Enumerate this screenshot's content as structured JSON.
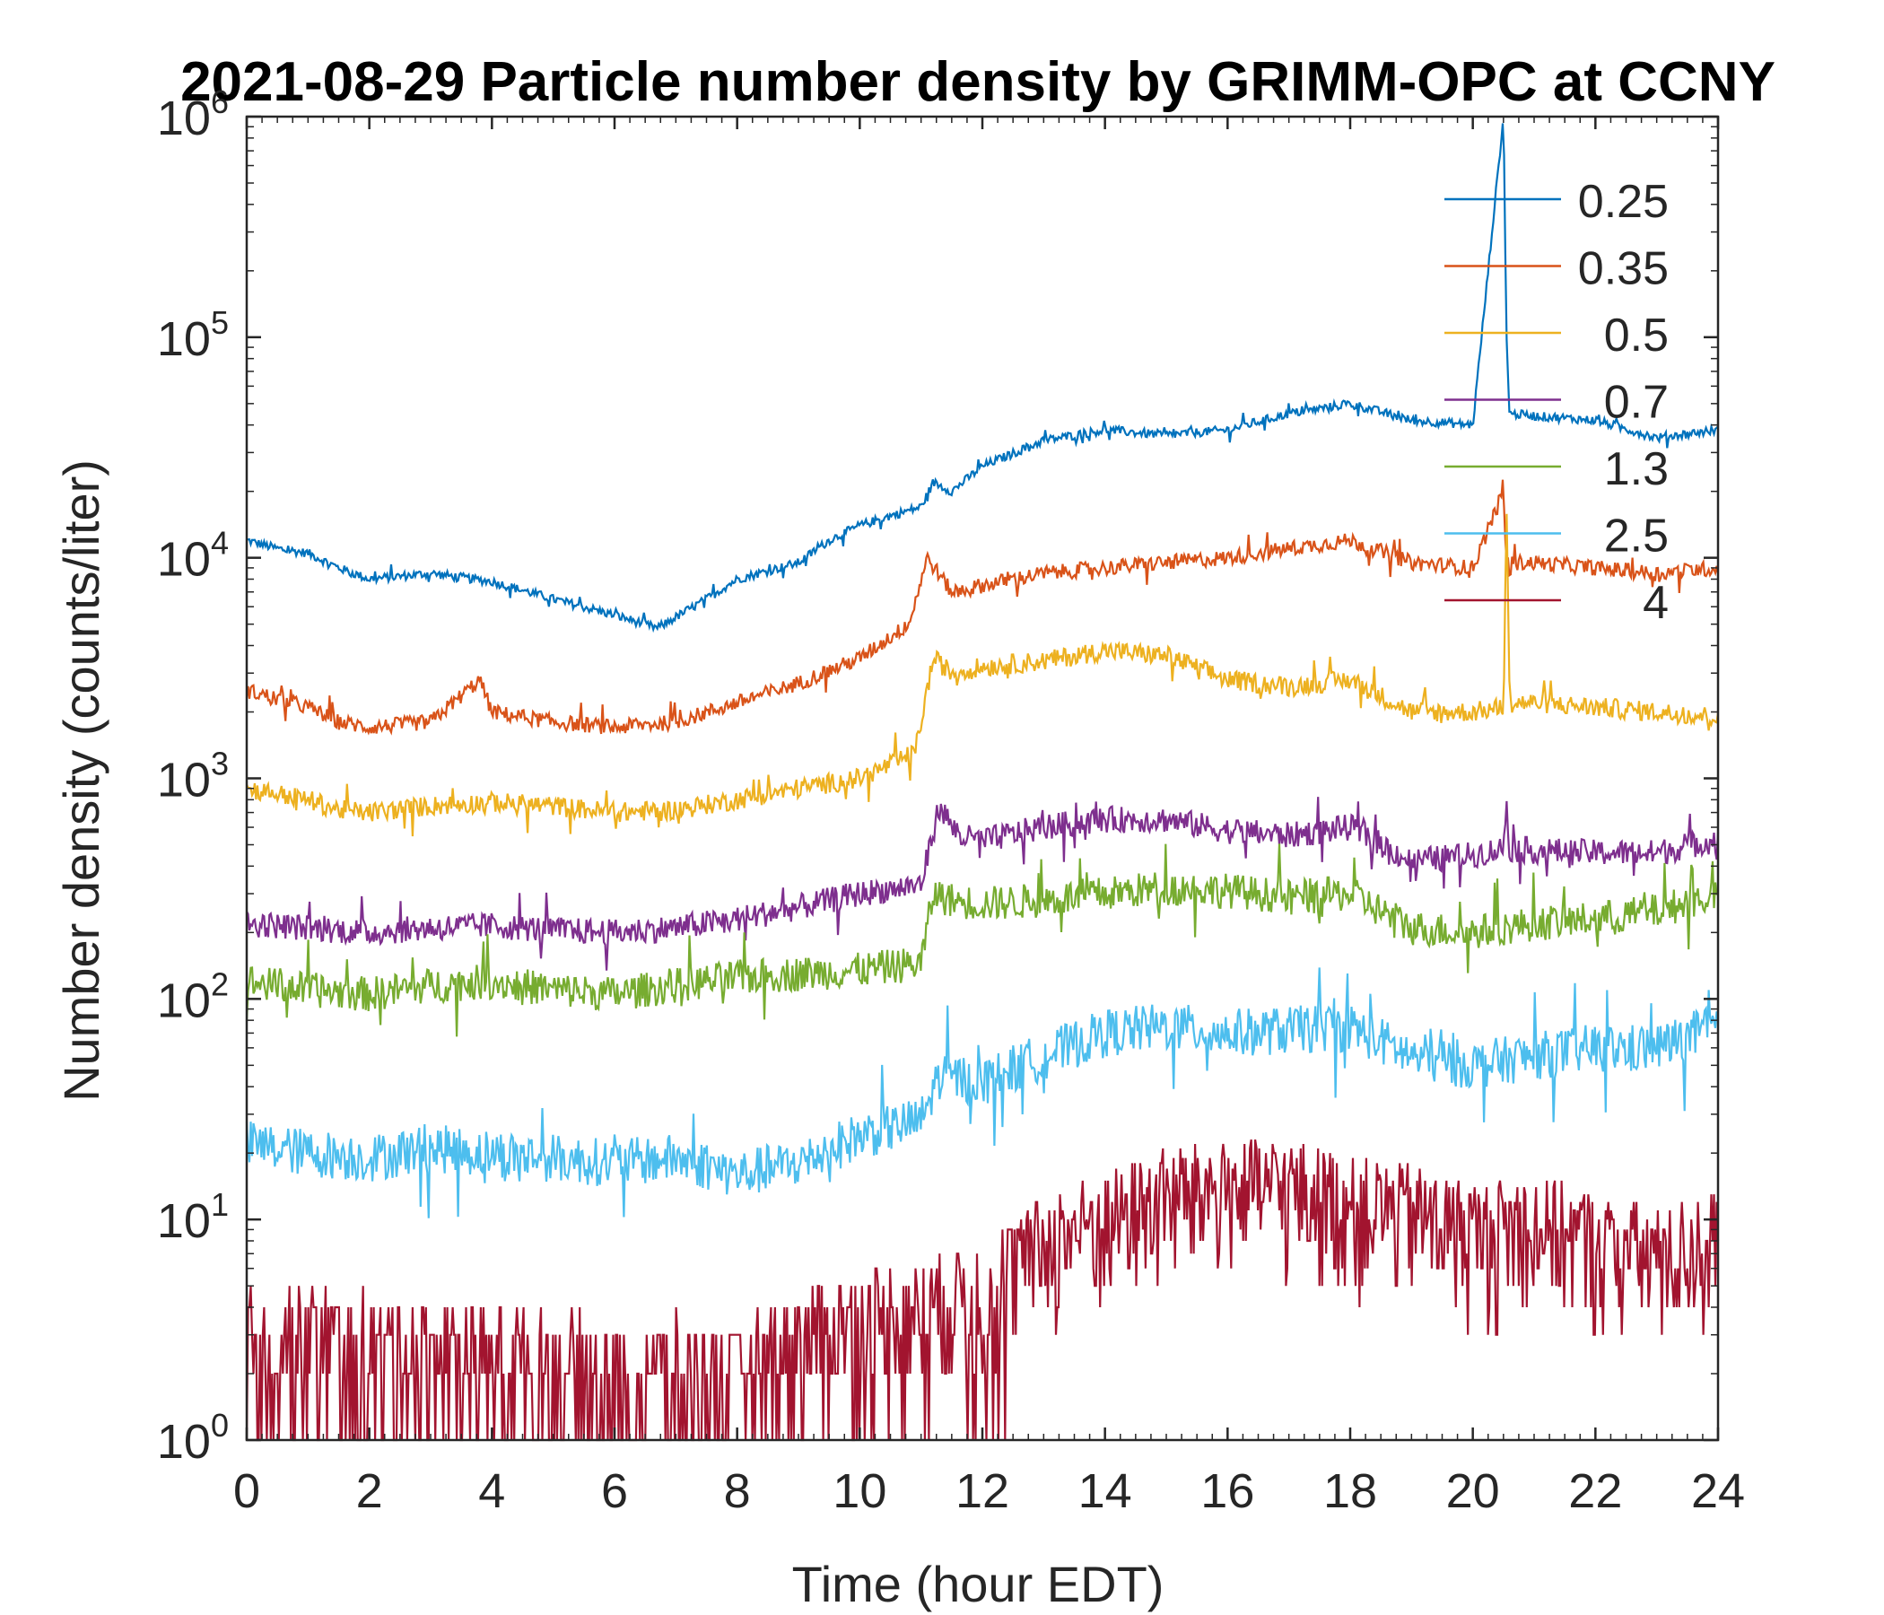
{
  "chart_data": {
    "type": "line",
    "title": "2021-08-29 Particle number density by GRIMM-OPC at CCNY",
    "xlabel": "Time (hour EDT)",
    "ylabel": "Number density (counts/liter)",
    "xlim": [
      0,
      24
    ],
    "ylim": [
      1,
      1000000
    ],
    "yscale": "log",
    "x_ticks": [
      "0",
      "2",
      "4",
      "6",
      "8",
      "10",
      "12",
      "14",
      "16",
      "18",
      "20",
      "22",
      "24"
    ],
    "y_ticks": [
      {
        "base": "10",
        "exp": "0"
      },
      {
        "base": "10",
        "exp": "1"
      },
      {
        "base": "10",
        "exp": "2"
      },
      {
        "base": "10",
        "exp": "3"
      },
      {
        "base": "10",
        "exp": "4"
      },
      {
        "base": "10",
        "exp": "5"
      },
      {
        "base": "10",
        "exp": "6"
      }
    ],
    "grid": false,
    "legend_position": "top-right",
    "series": [
      {
        "name": "0.25",
        "color": "#0072BD",
        "x": [
          0,
          0.5,
          1,
          1.5,
          2,
          3,
          4,
          5,
          6,
          6.7,
          7.5,
          8,
          9,
          9.5,
          10,
          10.5,
          11,
          11.2,
          11.5,
          12,
          13,
          14,
          15,
          16,
          17,
          18,
          19,
          20,
          20.5,
          20.55,
          20.6,
          21,
          22,
          23,
          24
        ],
        "values": [
          12000,
          11000,
          10500,
          9000,
          8000,
          8500,
          7800,
          6500,
          5500,
          4800,
          6500,
          8000,
          9500,
          12000,
          14000,
          15500,
          17000,
          22000,
          20000,
          26000,
          34000,
          38000,
          36000,
          38000,
          45000,
          50000,
          42000,
          40000,
          1000000,
          100000,
          45000,
          44000,
          42000,
          35000,
          38000
        ]
      },
      {
        "name": "0.35",
        "color": "#D95319",
        "x": [
          0,
          0.5,
          1,
          1.5,
          2,
          3,
          3.8,
          4,
          5,
          6,
          7,
          8,
          9,
          10,
          10.8,
          11.1,
          11.5,
          12,
          13,
          14,
          15,
          16,
          17,
          18,
          19,
          20,
          20.5,
          20.55,
          20.6,
          21,
          22,
          23,
          24
        ],
        "values": [
          2500,
          2300,
          2100,
          1800,
          1700,
          1800,
          2800,
          2000,
          1800,
          1700,
          1800,
          2200,
          2700,
          3500,
          5000,
          10000,
          7000,
          7500,
          8500,
          9000,
          9500,
          10000,
          11000,
          12000,
          9500,
          9000,
          20000,
          9500,
          9500,
          9500,
          9000,
          8500,
          9000
        ]
      },
      {
        "name": "0.5",
        "color": "#EDB120",
        "x": [
          0,
          0.5,
          1,
          1.5,
          2,
          3,
          4,
          5,
          6,
          7,
          8,
          9,
          10,
          10.9,
          11.2,
          11.5,
          12,
          13,
          14,
          15,
          16,
          17,
          18,
          19,
          20,
          20.5,
          20.55,
          20.6,
          21,
          22,
          23,
          24
        ],
        "values": [
          900,
          850,
          800,
          720,
          700,
          750,
          780,
          750,
          700,
          720,
          800,
          900,
          1000,
          1300,
          3500,
          3000,
          3200,
          3400,
          3800,
          3600,
          2800,
          2600,
          2800,
          2000,
          2000,
          2100,
          17000,
          2200,
          2200,
          2100,
          2000,
          1900
        ]
      },
      {
        "name": "0.7",
        "color": "#7E2F8E",
        "x": [
          0,
          1,
          2,
          3,
          4,
          5,
          6,
          7,
          8,
          9,
          10,
          11,
          11.3,
          11.6,
          12,
          13,
          14,
          15,
          16,
          17,
          18,
          19,
          20,
          20.5,
          20.55,
          20.6,
          21,
          22,
          23,
          24
        ],
        "values": [
          220,
          210,
          200,
          210,
          215,
          205,
          200,
          210,
          230,
          260,
          300,
          330,
          750,
          550,
          520,
          600,
          650,
          650,
          580,
          550,
          600,
          420,
          450,
          480,
          800,
          480,
          470,
          460,
          460,
          530
        ]
      },
      {
        "name": "1.3",
        "color": "#77AC30",
        "x": [
          0,
          1,
          2,
          3,
          4,
          5,
          6,
          7,
          8,
          9,
          10,
          11,
          11.2,
          11.5,
          12,
          13,
          14,
          15,
          16,
          17,
          18,
          19,
          20,
          21,
          22,
          23,
          24
        ],
        "values": [
          120,
          110,
          105,
          115,
          120,
          110,
          105,
          115,
          125,
          130,
          135,
          145,
          300,
          280,
          270,
          280,
          300,
          320,
          310,
          290,
          300,
          210,
          200,
          220,
          230,
          250,
          300
        ]
      },
      {
        "name": "2.5",
        "color": "#4DBEEE",
        "x": [
          0,
          1,
          2,
          3,
          4,
          5,
          6,
          7,
          8,
          9,
          10,
          11,
          11.3,
          12,
          13,
          14,
          15,
          16,
          17,
          18,
          19,
          20,
          21,
          22,
          23,
          24
        ],
        "values": [
          22,
          20,
          19,
          21,
          20,
          19,
          18,
          19,
          16,
          18,
          24,
          28,
          45,
          42,
          55,
          70,
          75,
          70,
          72,
          75,
          55,
          50,
          55,
          60,
          60,
          75
        ]
      },
      {
        "name": "4",
        "color": "#A2142F",
        "x": [
          0,
          1,
          2,
          3,
          4,
          5,
          6,
          7,
          8,
          9,
          10,
          11,
          12,
          13,
          14,
          15,
          16,
          17,
          18,
          19,
          20,
          21,
          22,
          23,
          24
        ],
        "values": [
          3,
          3,
          2.8,
          2.5,
          2.5,
          2.2,
          2.2,
          2.2,
          2,
          3,
          3.5,
          4,
          5,
          8,
          10,
          13,
          14,
          14,
          12,
          11,
          9,
          10,
          8,
          7,
          8
        ]
      }
    ]
  }
}
